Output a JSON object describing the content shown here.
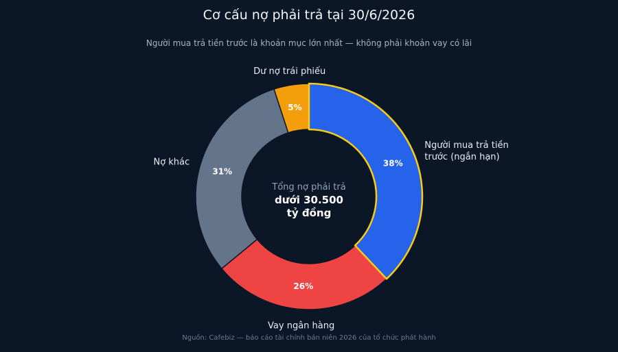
{
  "chart_data": {
    "type": "pie",
    "style": "donut",
    "title": "Cơ cấu nợ phải trả tại 30/6/2026",
    "subtitle": "Người mua trả tiền trước là khoản mục lớn nhất — không phải khoản vay có lãi",
    "center_label": {
      "caption": "Tổng nợ phải trả",
      "value_line1": "dưới 30.500",
      "value_line2": "tỷ đồng"
    },
    "slices": [
      {
        "label": "Người mua trả tiền trước (ngắn hạn)",
        "label_lines": [
          "Người mua trả tiền",
          "trước (ngắn hạn)"
        ],
        "value": 38,
        "value_label": "38%",
        "color": "#2563eb",
        "highlight": true
      },
      {
        "label": "Vay ngân hàng",
        "label_lines": [
          "Vay ngân hàng"
        ],
        "value": 26,
        "value_label": "26%",
        "color": "#ef4444",
        "highlight": false
      },
      {
        "label": "Nợ khác",
        "label_lines": [
          "Nợ khác"
        ],
        "value": 31,
        "value_label": "31%",
        "color": "#64748b",
        "highlight": false
      },
      {
        "label": "Dư nợ trái phiếu",
        "label_lines": [
          "Dư nợ trái phiếu"
        ],
        "value": 5,
        "value_label": "5%",
        "color": "#f59e0b",
        "highlight": false
      }
    ],
    "highlight_color": "#facc15",
    "source": "Nguồn: Cafebiz — báo cáo tài chính bán niên 2026 của tổ chức phát hành"
  }
}
